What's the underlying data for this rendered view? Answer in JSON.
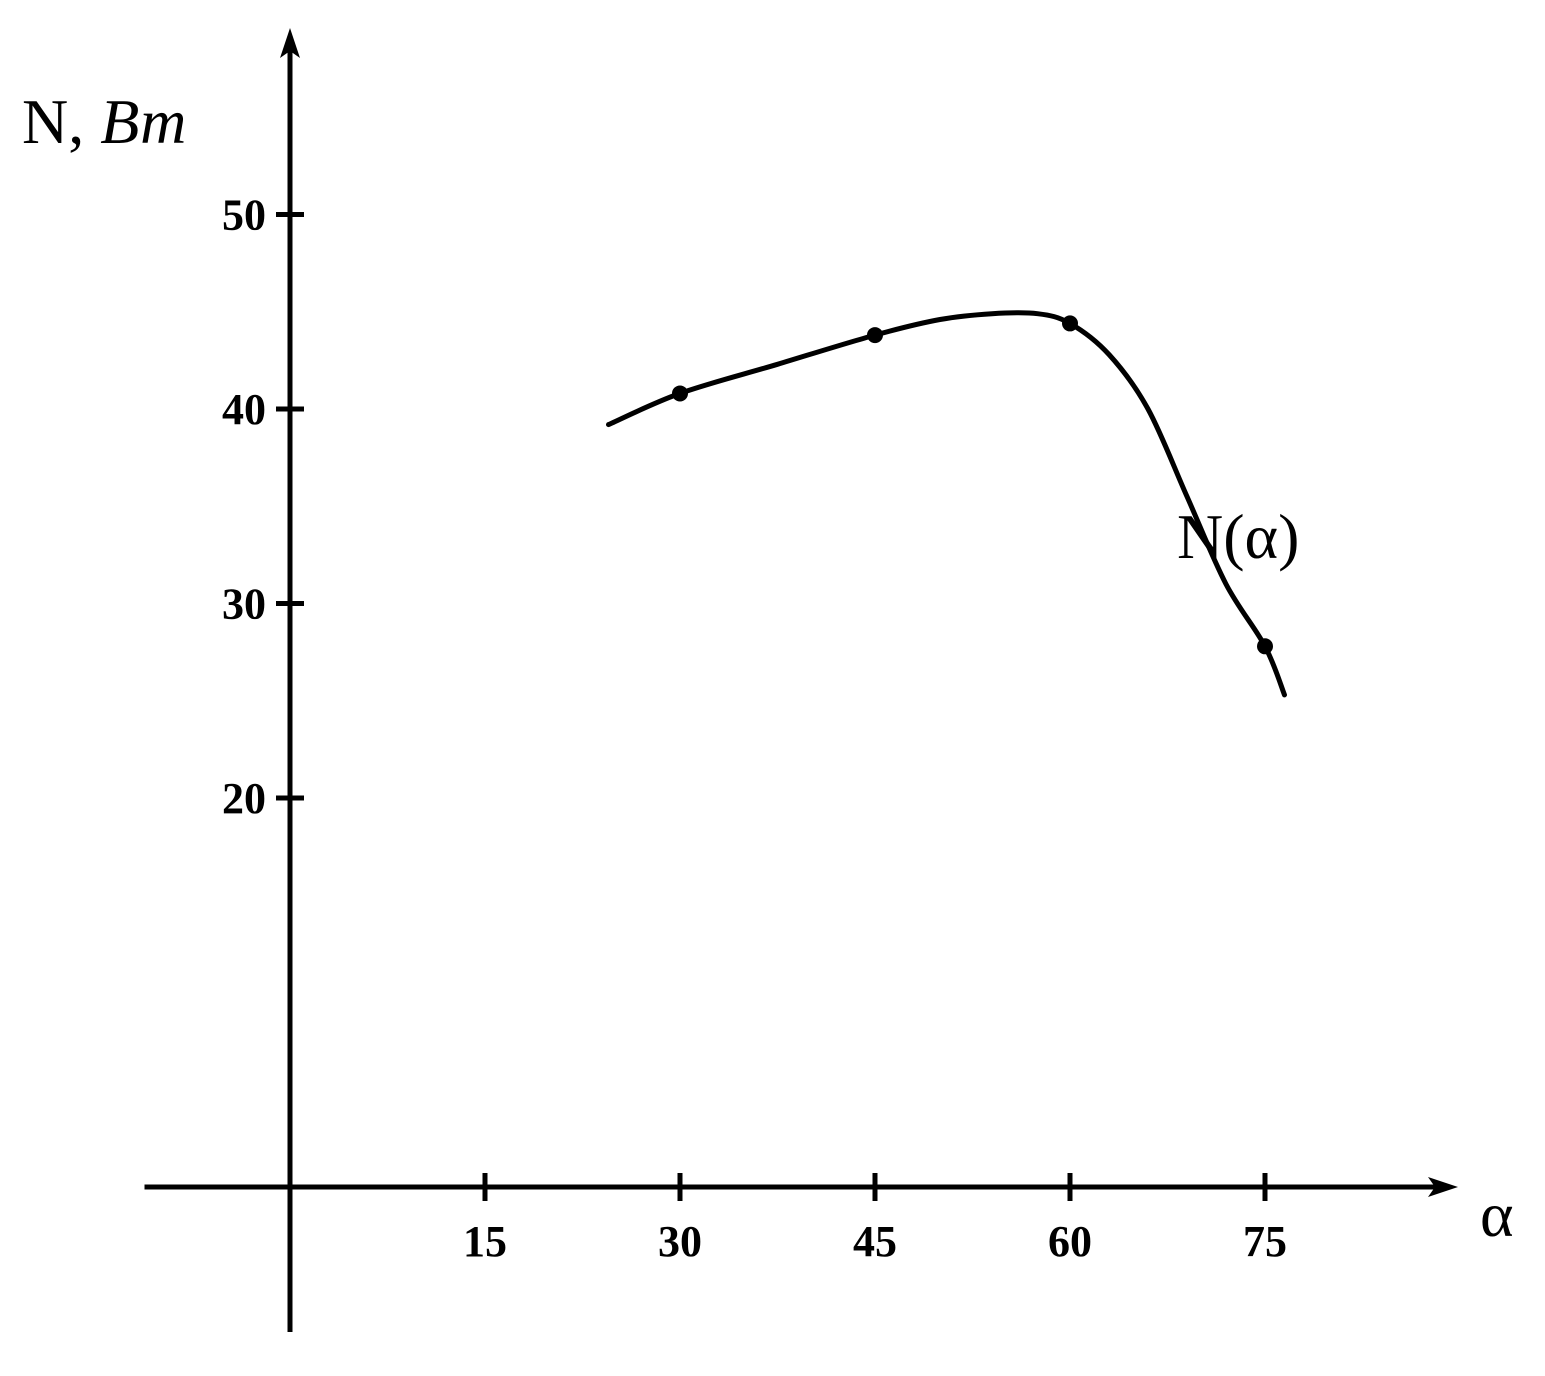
{
  "chart_data": {
    "type": "line",
    "title": "",
    "xlabel": "α",
    "ylabel": "N,",
    "ylabel_unit": "Вт",
    "xlim": [
      -7.5,
      88
    ],
    "ylim": [
      -7.5,
      70
    ],
    "x_ticks": [
      15,
      30,
      45,
      60,
      75
    ],
    "y_ticks": [
      20,
      30,
      40,
      50
    ],
    "grid": false,
    "legend": "none",
    "series": [
      {
        "name": "N(α)",
        "points": [
          {
            "x": 30,
            "y": 40.8
          },
          {
            "x": 45,
            "y": 43.8
          },
          {
            "x": 60,
            "y": 44.4
          },
          {
            "x": 75,
            "y": 27.8
          }
        ],
        "curve": [
          [
            24.5,
            39.2
          ],
          [
            30,
            40.8
          ],
          [
            37.5,
            42.3
          ],
          [
            45,
            43.8
          ],
          [
            50,
            44.6
          ],
          [
            54,
            44.9
          ],
          [
            57.5,
            44.9
          ],
          [
            60,
            44.4
          ],
          [
            63,
            42.8
          ],
          [
            66,
            40.0
          ],
          [
            69,
            35.5
          ],
          [
            72,
            31.0
          ],
          [
            75,
            27.8
          ],
          [
            76.5,
            25.3
          ]
        ]
      }
    ],
    "colors": {
      "line": "#000000",
      "axes": "#000000",
      "background": "#ffffff"
    }
  }
}
